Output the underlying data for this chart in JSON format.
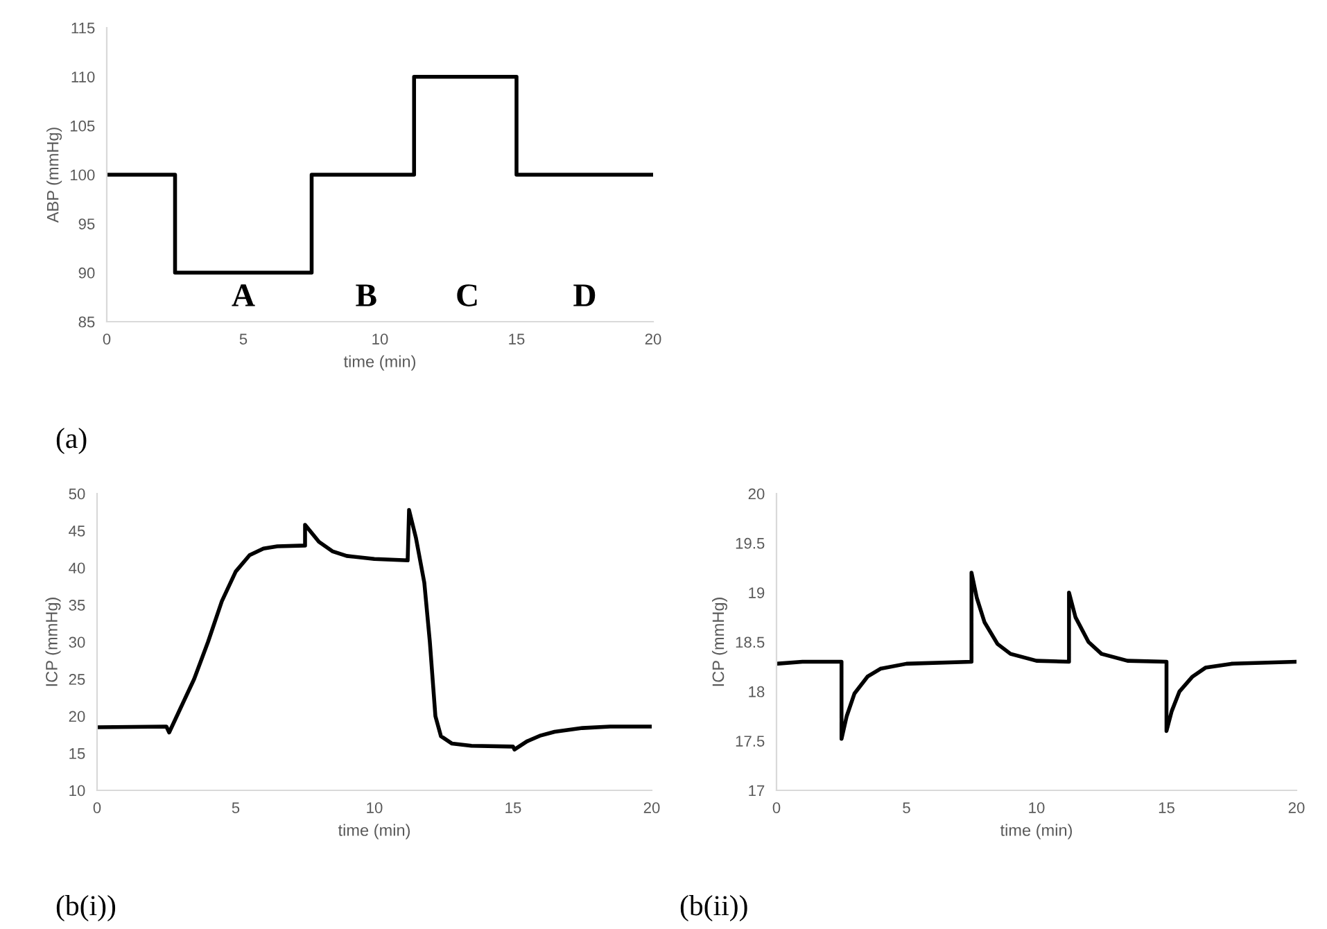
{
  "chart_data": [
    {
      "type": "line",
      "xlabel": "time (min)",
      "ylabel": "ABP (mmHg)",
      "xlim": [
        0,
        20
      ],
      "ylim": [
        85,
        115
      ],
      "xticks": [
        0,
        5,
        10,
        15,
        20
      ],
      "yticks": [
        85,
        90,
        95,
        100,
        105,
        110,
        115
      ],
      "grid": false,
      "legend": false,
      "series": [
        {
          "color": "#000000",
          "x": [
            0,
            2.5,
            2.5,
            7.5,
            7.5,
            11.25,
            11.25,
            15,
            15,
            20
          ],
          "values": [
            100,
            100,
            90,
            90,
            100,
            100,
            110,
            110,
            100,
            100
          ]
        }
      ],
      "annotations": [
        "A",
        "B",
        "C",
        "D",
        "(a)"
      ]
    },
    {
      "type": "line",
      "xlabel": "time (min)",
      "ylabel": "ICP (mmHg)",
      "xlim": [
        0,
        20
      ],
      "ylim": [
        10,
        50
      ],
      "xticks": [
        0,
        5,
        10,
        15,
        20
      ],
      "yticks": [
        10,
        15,
        20,
        25,
        30,
        35,
        40,
        45,
        50
      ],
      "grid": false,
      "legend": false,
      "series": [
        {
          "color": "#000000",
          "x": [
            0,
            2.5,
            2.6,
            3,
            3.5,
            4,
            4.5,
            5,
            5.5,
            6,
            6.5,
            7.5,
            7.5,
            8,
            8.5,
            9,
            10,
            11.2,
            11.25,
            11.5,
            11.8,
            12,
            12.2,
            12.4,
            12.8,
            13.5,
            15,
            15.05,
            15.5,
            16,
            16.5,
            17.5,
            18.5,
            20
          ],
          "values": [
            18.5,
            18.6,
            17.8,
            21,
            25,
            30,
            35.5,
            39.5,
            41.7,
            42.6,
            42.9,
            43,
            45.8,
            43.5,
            42.2,
            41.6,
            41.2,
            41,
            47.8,
            44,
            38,
            30,
            20,
            17.3,
            16.3,
            16,
            15.9,
            15.5,
            16.6,
            17.4,
            17.9,
            18.4,
            18.6,
            18.6
          ]
        }
      ],
      "annotations": [
        "(b(i))"
      ]
    },
    {
      "type": "line",
      "xlabel": "time (min)",
      "ylabel": "ICP (mmHg)",
      "xlim": [
        0,
        20
      ],
      "ylim": [
        17,
        20
      ],
      "xticks": [
        0,
        5,
        10,
        15,
        20
      ],
      "yticks": [
        17,
        17.5,
        18,
        18.5,
        19,
        19.5,
        20
      ],
      "grid": false,
      "legend": false,
      "series": [
        {
          "color": "#000000",
          "x": [
            0,
            1,
            2.5,
            2.5,
            2.7,
            3,
            3.5,
            4,
            5,
            7.5,
            7.5,
            7.7,
            8,
            8.5,
            9,
            10,
            11.25,
            11.25,
            11.5,
            12,
            12.5,
            13.5,
            15,
            15,
            15.2,
            15.5,
            16,
            16.5,
            17.5,
            20
          ],
          "values": [
            18.28,
            18.3,
            18.3,
            17.52,
            17.75,
            17.98,
            18.15,
            18.23,
            18.28,
            18.3,
            19.2,
            18.95,
            18.7,
            18.48,
            18.38,
            18.31,
            18.3,
            19.0,
            18.75,
            18.5,
            18.38,
            18.31,
            18.3,
            17.6,
            17.8,
            18.0,
            18.15,
            18.24,
            18.28,
            18.3
          ]
        }
      ],
      "annotations": [
        "(b(ii))"
      ]
    }
  ]
}
